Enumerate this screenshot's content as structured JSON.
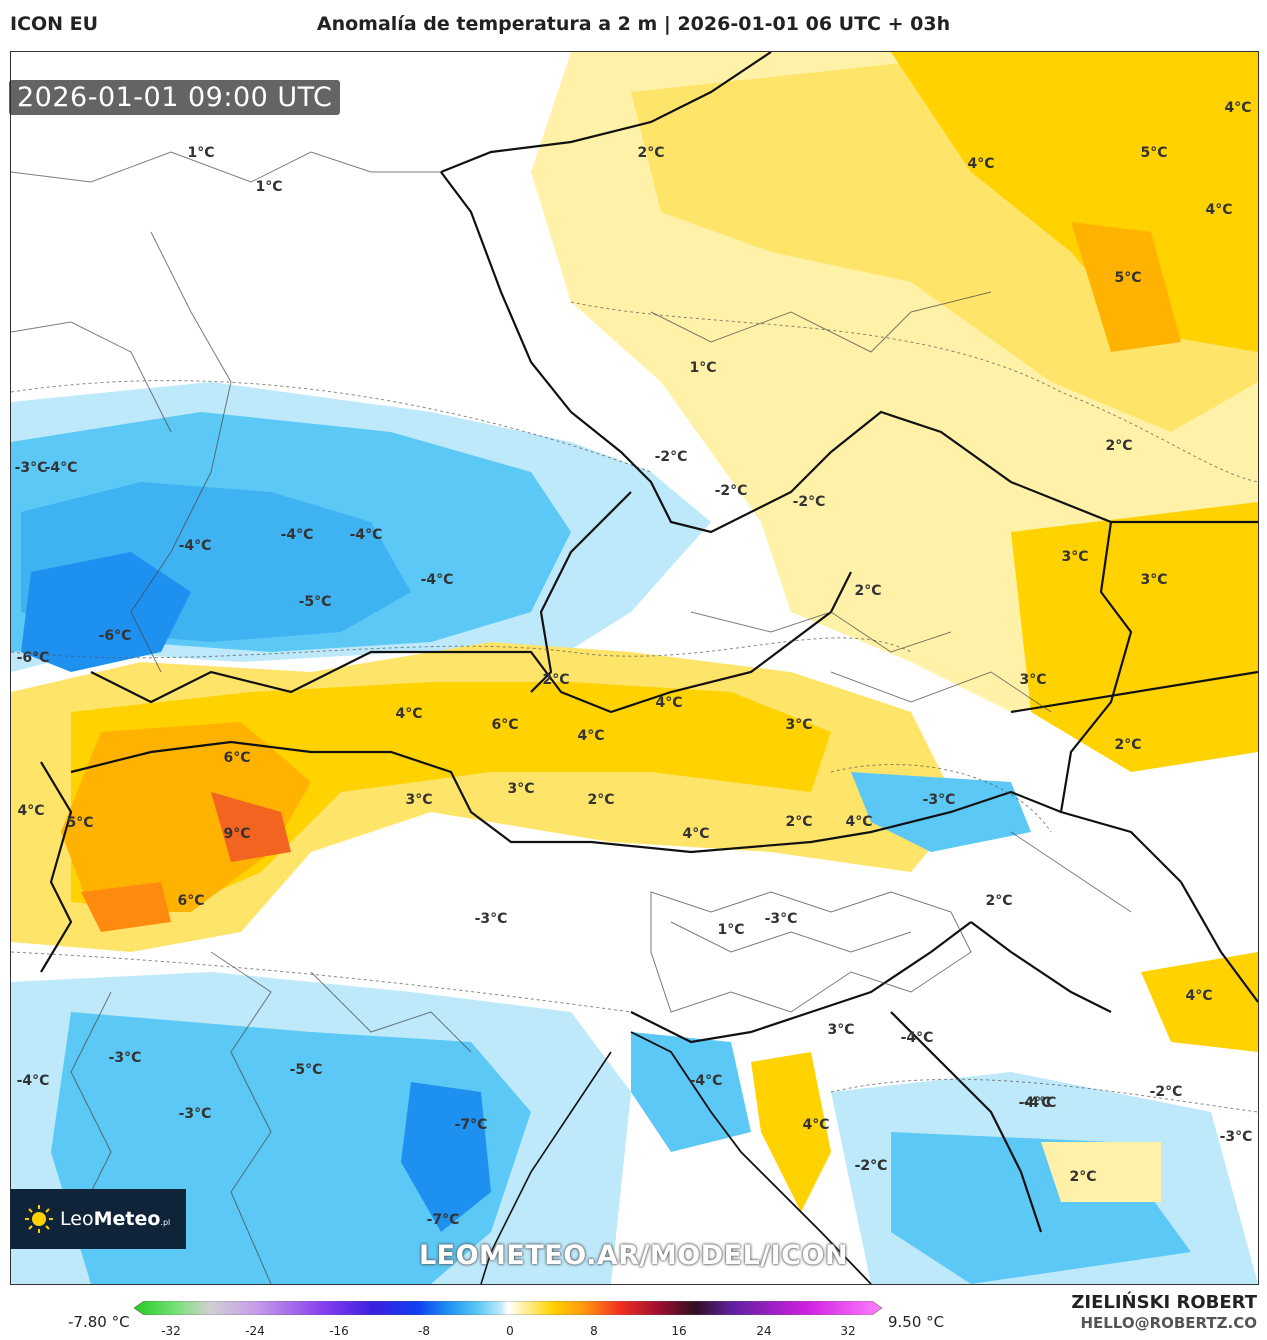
{
  "header": {
    "model": "ICON EU",
    "title": "Anomalía de temperatura a 2 m | 2026-01-01 06 UTC + 03h"
  },
  "map": {
    "timestamp": "2026-01-01 09:00 UTC",
    "watermark": "LEOMETEO.AR/MODEL/ICON",
    "labels": [
      "1°C",
      "1°C",
      "2°C",
      "4°C",
      "5°C",
      "4°C",
      "4°C",
      "5°C",
      "1°C",
      "2°C",
      "-3°C",
      "-4°C",
      "-2°C",
      "-2°C",
      "-2°C",
      "-4°C",
      "-4°C",
      "-4°C",
      "-4°C",
      "-5°C",
      "-6°C",
      "-6°C",
      "3°C",
      "3°C",
      "2°C",
      "2°C",
      "4°C",
      "6°C",
      "4°C",
      "4°C",
      "3°C",
      "3°C",
      "6°C",
      "4°C",
      "5°C",
      "9°C",
      "3°C",
      "3°C",
      "2°C",
      "4°C",
      "2°C",
      "4°C",
      "-3°C",
      "2°C",
      "2°C",
      "6°C",
      "-3°C",
      "-3°C",
      "1°C",
      "3°C",
      "-4°C",
      "4°C",
      "-3°C",
      "-5°C",
      "-4°C",
      "-3°C",
      "-4°C",
      "-4°C",
      "-2°C",
      "-2°C",
      "-7°C",
      "-7°C",
      "-4°C",
      "4°C",
      "-2°C",
      "2°C",
      "-3°C"
    ]
  },
  "logo": {
    "brand_light": "Leo",
    "brand_bold": "Meteo",
    "suffix": ".pl"
  },
  "colorbar": {
    "min_label": "-7.80 °C",
    "max_label": "9.50 °C",
    "ticks": [
      "-32",
      "-24",
      "-16",
      "-8",
      "0",
      "8",
      "16",
      "24",
      "32"
    ]
  },
  "credits": {
    "author": "ZIELIŃSKI ROBERT",
    "email": "HELLO@ROBERTZ.CO"
  },
  "colors": {
    "cold_light": "#bde9fb",
    "cold_mid": "#5cc8f5",
    "cold_deep": "#1e90f0",
    "warm_light": "#fff2a8",
    "warm_mid": "#ffd200",
    "warm_deep": "#ff9a10",
    "hot": "#f26420"
  }
}
